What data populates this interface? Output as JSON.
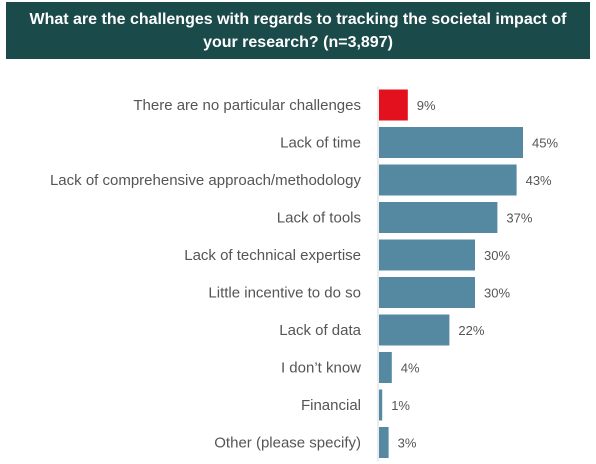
{
  "chart_data": {
    "type": "bar",
    "orientation": "horizontal",
    "title": "What are the challenges with regards to tracking the societal impact of your research? (n=3,897)",
    "categories": [
      "There are no particular challenges",
      "Lack of time",
      "Lack of comprehensive approach/methodology",
      "Lack of tools",
      "Lack of technical expertise",
      "Little incentive to do so",
      "Lack of data",
      "I don’t know",
      "Financial",
      "Other (please specify)"
    ],
    "values": [
      9,
      45,
      43,
      37,
      30,
      30,
      22,
      4,
      1,
      3
    ],
    "data_labels": [
      "9%",
      "45%",
      "43%",
      "37%",
      "30%",
      "30%",
      "22%",
      "4%",
      "1%",
      "3%"
    ],
    "highlight_index": 0,
    "colors": {
      "bar": "#5589a1",
      "highlight": "#e3101d",
      "title_bg": "#1b4a4a",
      "title_text": "#ffffff",
      "label_text": "#555555"
    },
    "legend": "none",
    "grid": false
  }
}
